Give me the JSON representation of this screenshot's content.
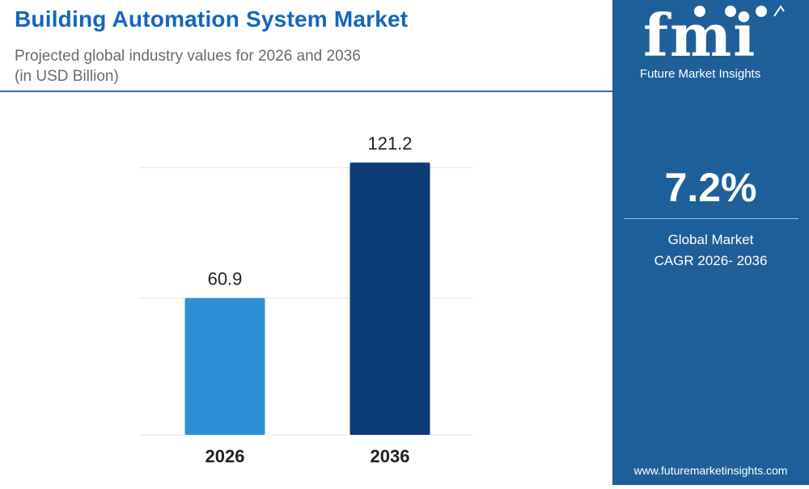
{
  "header": {
    "title": "Building Automation System Market",
    "subtitle_line1": "Projected global industry values for 2026 and 2036",
    "subtitle_line2": "(in USD Billion)"
  },
  "sidebar": {
    "logo_text": "fmi",
    "logo_caption": "Future Market Insights",
    "cagr_value": "7.2%",
    "cagr_label_line1": "Global Market",
    "cagr_label_line2": "CAGR 2026- 2036",
    "website": "www.futuremarketinsights.com"
  },
  "colors": {
    "title": "#1565c0",
    "sidebar_bg": "#1f5f99",
    "bar_2026": "#2f8fd6",
    "bar_2036": "#0d3b73"
  },
  "chart_data": {
    "type": "bar",
    "title": "Building Automation System Market",
    "subtitle": "Projected global industry values for 2026 and 2036 (in USD Billion)",
    "categories": [
      "2026",
      "2036"
    ],
    "values": [
      60.9,
      121.2
    ],
    "value_labels": [
      "60.9",
      "121.2"
    ],
    "xlabel": "",
    "ylabel": "",
    "ylim": [
      0,
      145
    ],
    "grid": true
  }
}
